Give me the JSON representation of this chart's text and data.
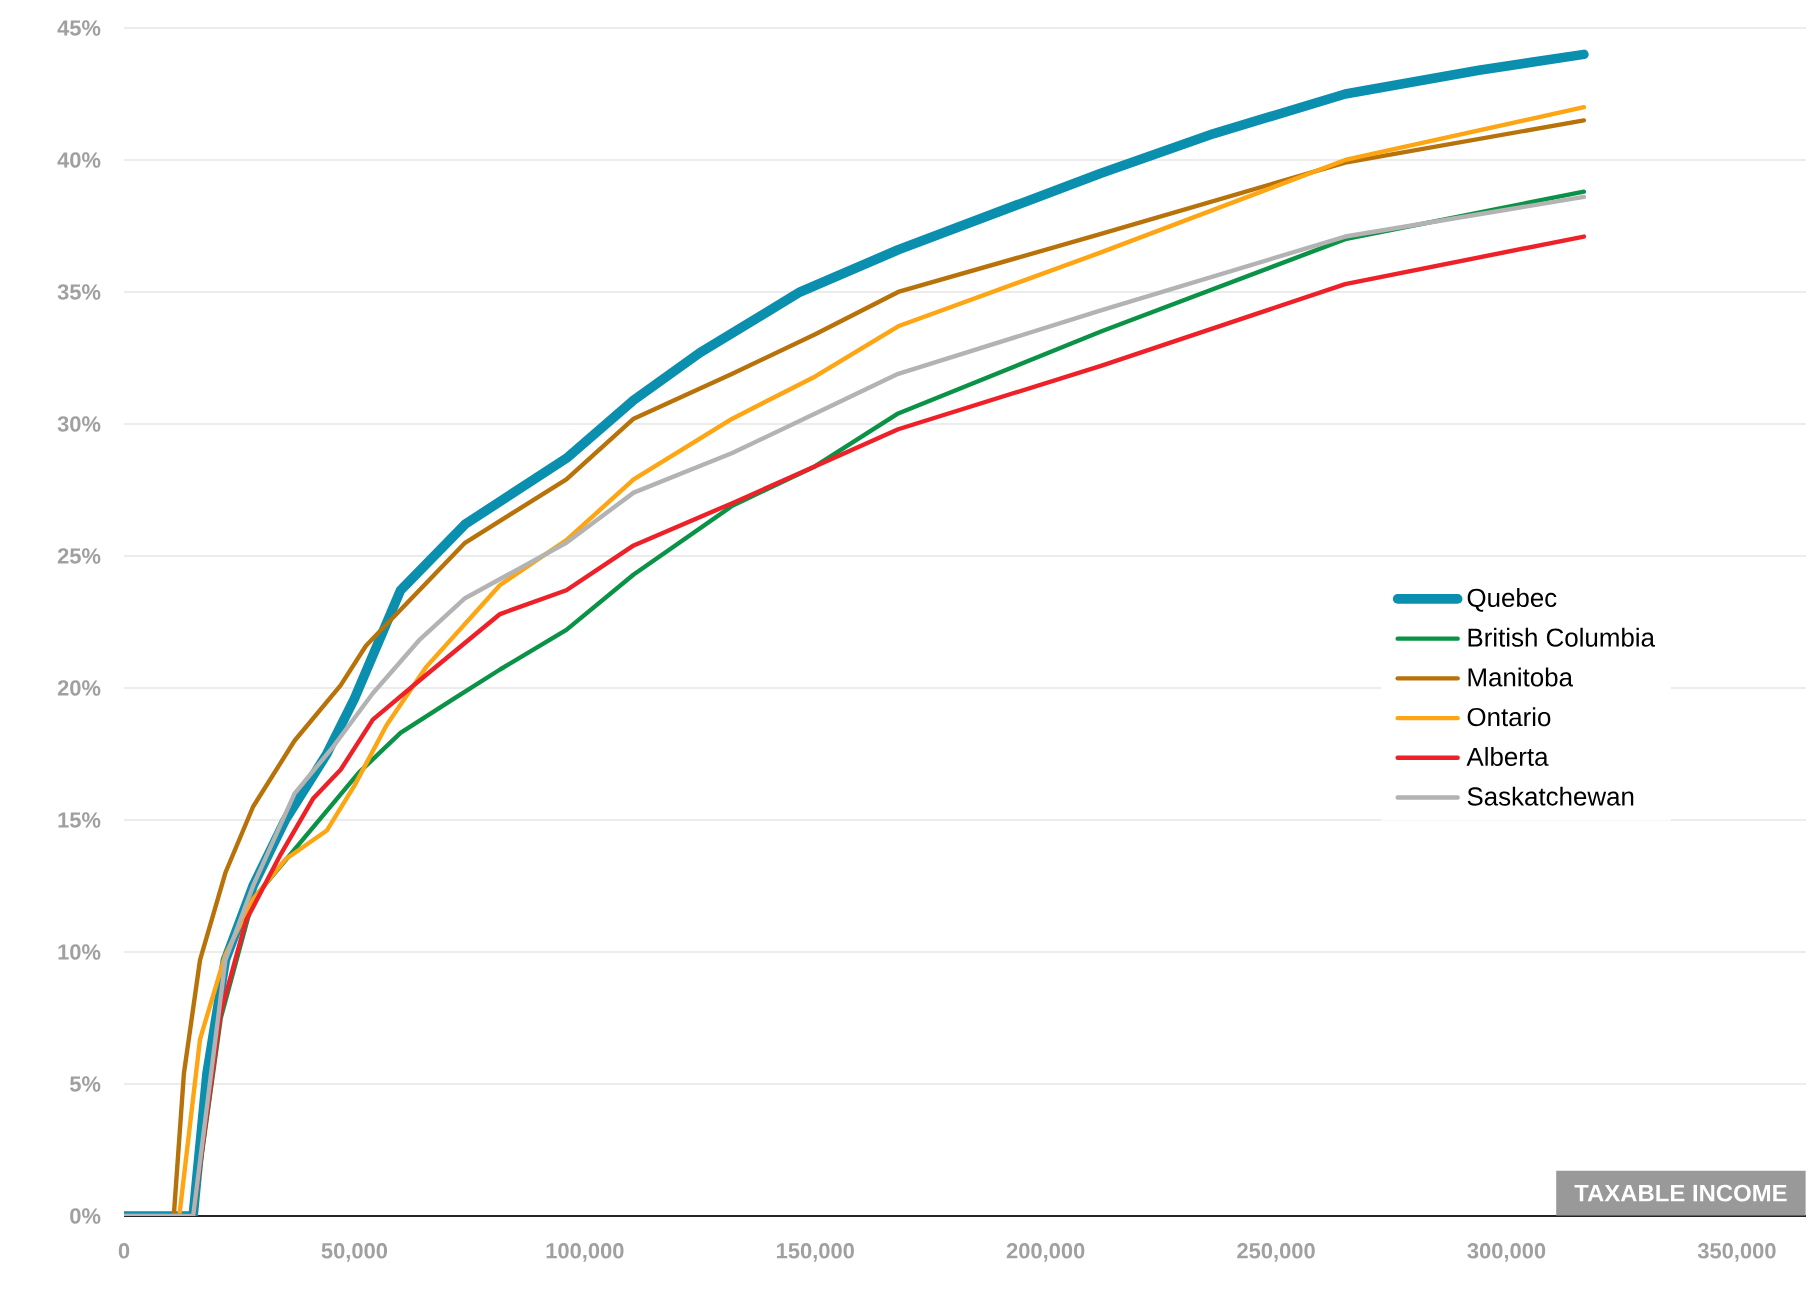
{
  "chart_data": {
    "type": "line",
    "xlabel": "TAXABLE INCOME",
    "xlim": [
      0,
      365000
    ],
    "ylim": [
      0,
      45
    ],
    "xticks": [
      {
        "value": 0,
        "label": "0"
      },
      {
        "value": 50000,
        "label": "50,000"
      },
      {
        "value": 100000,
        "label": "100,000"
      },
      {
        "value": 150000,
        "label": "150,000"
      },
      {
        "value": 200000,
        "label": "200,000"
      },
      {
        "value": 250000,
        "label": "250,000"
      },
      {
        "value": 300000,
        "label": "300,000"
      },
      {
        "value": 350000,
        "label": "350,000"
      }
    ],
    "yticks": [
      {
        "value": 0,
        "label": "0%"
      },
      {
        "value": 5,
        "label": "5%"
      },
      {
        "value": 10,
        "label": "10%"
      },
      {
        "value": 15,
        "label": "15%"
      },
      {
        "value": 20,
        "label": "20%"
      },
      {
        "value": 25,
        "label": "25%"
      },
      {
        "value": 30,
        "label": "30%"
      },
      {
        "value": 35,
        "label": "35%"
      },
      {
        "value": 40,
        "label": "40%"
      },
      {
        "value": 45,
        "label": "45%"
      }
    ],
    "grid": "y",
    "legend": "right",
    "series": [
      {
        "name": "Quebec",
        "color": "#0a8fae",
        "x": [
          0,
          15000,
          18000,
          22000,
          28000,
          35000,
          44000,
          50000,
          60000,
          74000,
          96000,
          110600,
          125000,
          146700,
          168000,
          212000,
          236500,
          265000,
          294000,
          316800
        ],
        "values": [
          0,
          0,
          5.4,
          9.7,
          12.5,
          15.0,
          17.5,
          19.6,
          23.7,
          26.2,
          28.7,
          30.9,
          32.7,
          35.0,
          36.6,
          39.5,
          41.0,
          42.5,
          43.4,
          44.0
        ]
      },
      {
        "name": "British Columbia",
        "color": "#0a9346",
        "x": [
          0,
          15000,
          21000,
          28000,
          35000,
          44000,
          51000,
          60000,
          71600,
          81600,
          96000,
          110600,
          132000,
          150000,
          168000,
          212000,
          265000,
          316800
        ],
        "values": [
          0,
          0,
          7.5,
          12.0,
          null,
          null,
          16.8,
          18.3,
          19.6,
          20.7,
          22.2,
          24.3,
          26.9,
          28.4,
          30.4,
          33.5,
          37.0,
          38.8
        ]
      },
      {
        "name": "Manitoba",
        "color": "#b8720a",
        "x": [
          0,
          10800,
          13000,
          16500,
          22000,
          28000,
          37000,
          47000,
          52500,
          74000,
          96000,
          110600,
          132000,
          150000,
          168000,
          212000,
          265000,
          316800
        ],
        "values": [
          0,
          0,
          5.4,
          9.7,
          13.0,
          15.5,
          18.0,
          20.1,
          21.6,
          25.5,
          27.9,
          30.2,
          31.9,
          33.4,
          35.0,
          37.2,
          39.9,
          41.5
        ]
      },
      {
        "name": "Ontario",
        "color": "#fda513",
        "x": [
          0,
          12000,
          16500,
          22000,
          28000,
          35000,
          44000,
          50000,
          57000,
          65600,
          81600,
          96000,
          110600,
          132000,
          150000,
          168000,
          212000,
          265000,
          316800
        ],
        "values": [
          0,
          0,
          6.7,
          9.9,
          12.0,
          13.5,
          14.6,
          16.3,
          18.6,
          20.8,
          23.9,
          25.6,
          27.9,
          30.2,
          31.8,
          33.7,
          36.5,
          40.0,
          42.0
        ]
      },
      {
        "name": "Alberta",
        "color": "#ee2028",
        "x": [
          0,
          15000,
          21000,
          26500,
          34000,
          41000,
          47000,
          54000,
          65600,
          81600,
          96000,
          110600,
          132000,
          150000,
          168000,
          212000,
          265000,
          316800
        ],
        "values": [
          0,
          0,
          7.7,
          11.2,
          13.7,
          15.8,
          16.9,
          18.8,
          20.5,
          22.8,
          23.7,
          25.4,
          27.0,
          28.4,
          29.8,
          32.2,
          35.3,
          37.1
        ]
      },
      {
        "name": "Saskatchewan",
        "color": "#b3b3b3",
        "x": [
          0,
          15000,
          22000,
          28000,
          37000,
          45500,
          54000,
          64000,
          74000,
          96000,
          110600,
          132000,
          150000,
          168000,
          212000,
          265000,
          316800
        ],
        "values": [
          0,
          0,
          9.7,
          12.5,
          16.0,
          17.8,
          19.8,
          21.8,
          23.4,
          25.5,
          27.4,
          28.9,
          30.4,
          31.9,
          34.3,
          37.1,
          38.6
        ]
      }
    ]
  }
}
